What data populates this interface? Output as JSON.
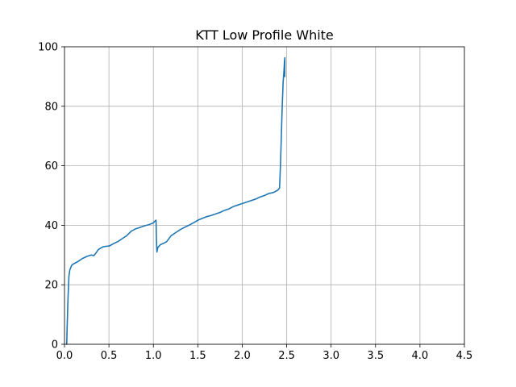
{
  "chart_data": {
    "type": "line",
    "title": "KTT Low Profile White",
    "xlabel": "",
    "ylabel": "",
    "xlim": [
      0.0,
      4.5
    ],
    "ylim": [
      0,
      100
    ],
    "grid": true,
    "x_ticks": [
      "0.0",
      "0.5",
      "1.0",
      "1.5",
      "2.0",
      "2.5",
      "3.0",
      "3.5",
      "4.0",
      "4.5"
    ],
    "y_ticks": [
      "0",
      "20",
      "40",
      "60",
      "80",
      "100"
    ],
    "series": [
      {
        "name": "KTT Low Profile White",
        "color": "#1f77b4",
        "x": [
          0.02,
          0.025,
          0.03,
          0.04,
          0.05,
          0.06,
          0.08,
          0.1,
          0.12,
          0.15,
          0.2,
          0.25,
          0.3,
          0.33,
          0.35,
          0.38,
          0.4,
          0.43,
          0.46,
          0.5,
          0.52,
          0.55,
          0.6,
          0.65,
          0.7,
          0.75,
          0.8,
          0.85,
          0.9,
          0.95,
          1.0,
          1.02,
          1.03,
          1.035,
          1.04,
          1.05,
          1.08,
          1.12,
          1.15,
          1.2,
          1.25,
          1.3,
          1.35,
          1.4,
          1.45,
          1.5,
          1.55,
          1.6,
          1.65,
          1.7,
          1.75,
          1.8,
          1.85,
          1.9,
          1.95,
          2.0,
          2.05,
          2.1,
          2.15,
          2.2,
          2.25,
          2.3,
          2.35,
          2.4,
          2.42,
          2.43,
          2.44,
          2.45,
          2.46,
          2.47,
          2.475,
          2.48,
          2.478,
          2.48
        ],
        "y": [
          0,
          0,
          6,
          16,
          23,
          25,
          26.5,
          27,
          27.3,
          27.8,
          28.8,
          29.5,
          30,
          29.8,
          30.5,
          31.8,
          32.2,
          32.7,
          32.9,
          33,
          33.3,
          33.8,
          34.5,
          35.5,
          36.5,
          38,
          38.8,
          39.3,
          39.8,
          40.2,
          40.8,
          41.5,
          41.7,
          35,
          31,
          32.5,
          33.5,
          34,
          34.5,
          36.5,
          37.5,
          38.5,
          39.3,
          40,
          40.8,
          41.7,
          42.3,
          42.9,
          43.3,
          43.8,
          44.3,
          45,
          45.5,
          46.3,
          46.8,
          47.3,
          47.8,
          48.3,
          48.8,
          49.5,
          50,
          50.7,
          51,
          51.8,
          52.5,
          60,
          70,
          80,
          88,
          92,
          95,
          96.3,
          90,
          95
        ]
      }
    ]
  }
}
